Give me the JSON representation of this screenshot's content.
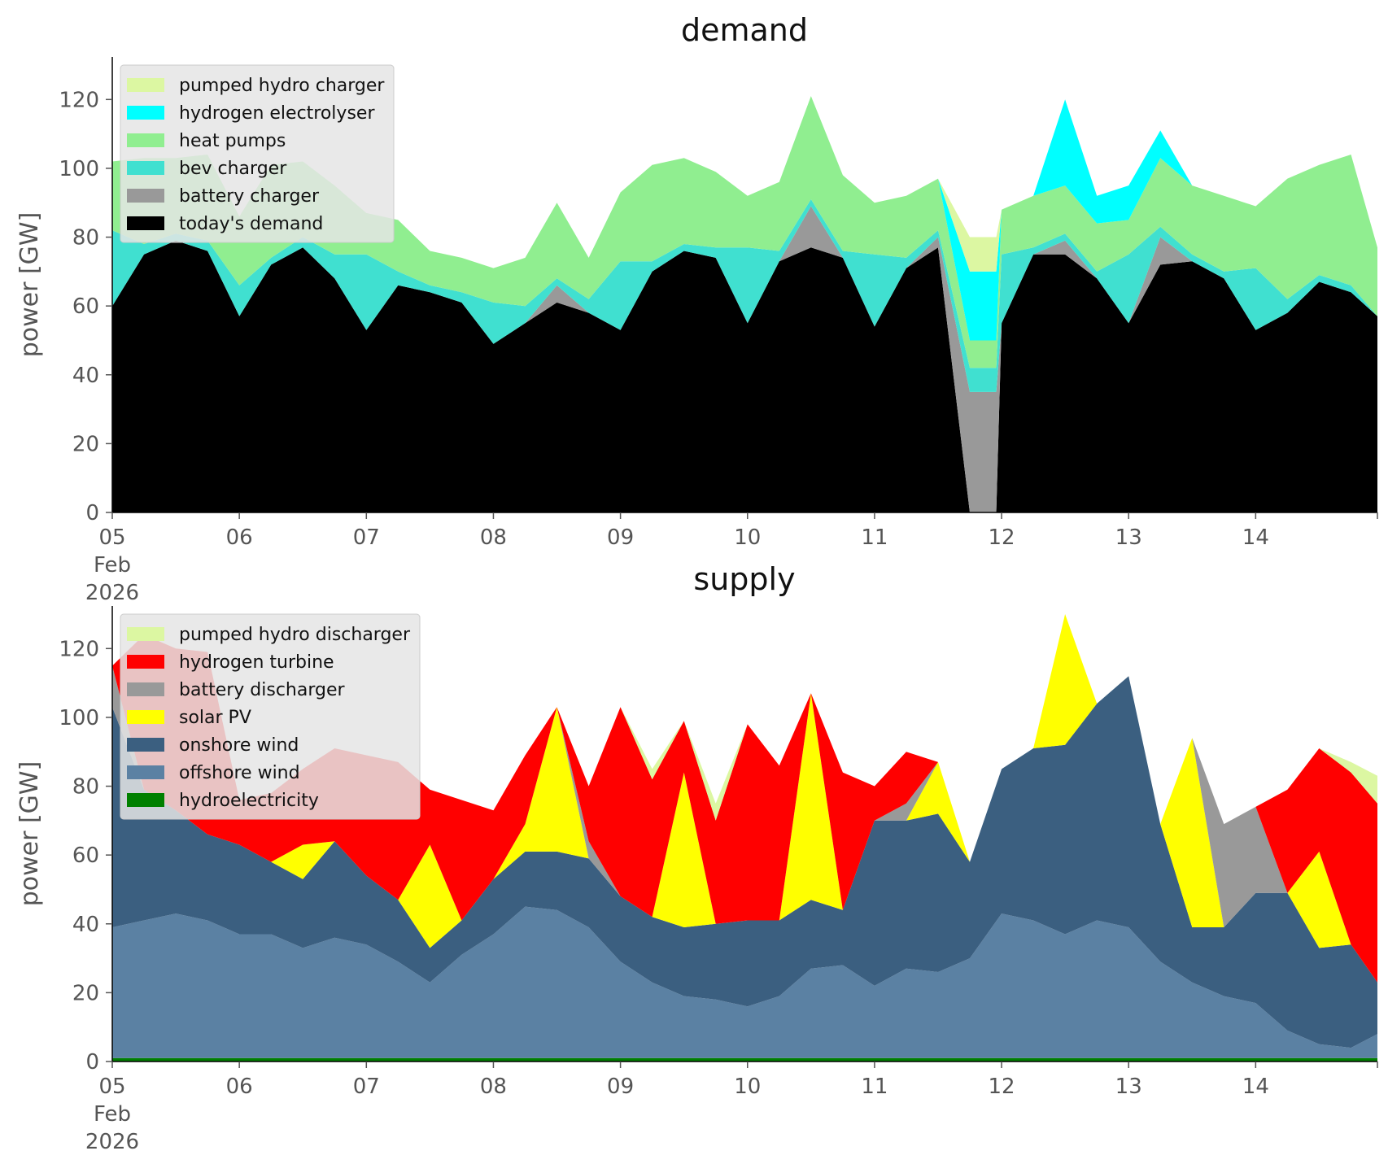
{
  "chart_data": [
    {
      "type": "area",
      "stacked": true,
      "title": "demand",
      "ylabel": "power [GW]",
      "xlabel": "",
      "ylim": [
        0,
        130
      ],
      "xlim": [
        "2026-02-05 00:00",
        "2026-02-14 23:00"
      ],
      "yticks": [
        0,
        20,
        40,
        60,
        80,
        100,
        120
      ],
      "xticks": [
        "05",
        "06",
        "07",
        "08",
        "09",
        "10",
        "11",
        "12",
        "13",
        "14"
      ],
      "xtick_month": "Feb",
      "xtick_year": "2026",
      "grid": false,
      "legend_position": "top-left",
      "legend": [
        "pumped hydro charger",
        "hydrogen electrolyser",
        "heat pumps",
        "bev charger",
        "battery charger",
        "today's demand"
      ],
      "x": [
        "2026-02-05 00:00",
        "2026-02-05 06:00",
        "2026-02-05 12:00",
        "2026-02-05 18:00",
        "2026-02-06 00:00",
        "2026-02-06 06:00",
        "2026-02-06 12:00",
        "2026-02-06 18:00",
        "2026-02-07 00:00",
        "2026-02-07 06:00",
        "2026-02-07 12:00",
        "2026-02-07 18:00",
        "2026-02-08 00:00",
        "2026-02-08 06:00",
        "2026-02-08 12:00",
        "2026-02-08 18:00",
        "2026-02-09 00:00",
        "2026-02-09 06:00",
        "2026-02-09 12:00",
        "2026-02-09 18:00",
        "2026-02-10 00:00",
        "2026-02-10 06:00",
        "2026-02-10 12:00",
        "2026-02-10 18:00",
        "2026-02-11 00:00",
        "2026-02-11 06:00",
        "2026-02-11 12:00",
        "2026-02-11 18:00",
        "2026-02-12 00:00",
        "2026-02-12 06:00",
        "2026-02-12 12:00",
        "2026-02-12 18:00",
        "2026-02-13 00:00",
        "2026-02-13 06:00",
        "2026-02-13 12:00",
        "2026-02-13 18:00",
        "2026-02-14 00:00",
        "2026-02-14 06:00",
        "2026-02-14 12:00",
        "2026-02-14 18:00",
        "2026-02-14 23:00"
      ],
      "series": [
        {
          "name": "today's demand",
          "color": "#000000",
          "values": [
            60,
            75,
            79,
            76,
            57,
            72,
            77,
            68,
            53,
            66,
            64,
            61,
            49,
            55,
            61,
            58,
            53,
            70,
            76,
            74,
            55,
            73,
            77,
            74,
            54,
            71,
            77,
            75,
            55,
            75,
            75,
            68,
            55,
            72,
            73,
            68,
            53,
            58,
            67,
            64,
            57
          ]
        },
        {
          "name": "battery charger",
          "color": "#999999",
          "values": [
            0,
            0,
            0,
            0,
            0,
            0,
            0,
            0,
            0,
            0,
            0,
            0,
            0,
            0,
            5,
            0,
            0,
            0,
            0,
            0,
            0,
            0,
            12,
            0,
            0,
            0,
            3,
            0,
            0,
            0,
            4,
            0,
            0,
            8,
            0,
            0,
            0,
            0,
            0,
            0,
            0
          ]
        },
        {
          "name": "bev charger",
          "color": "#40e0d0",
          "values": [
            22,
            3,
            2,
            3,
            9,
            2,
            3,
            7,
            22,
            4,
            2,
            3,
            12,
            5,
            2,
            4,
            20,
            3,
            2,
            3,
            22,
            3,
            2,
            2,
            21,
            3,
            2,
            2,
            20,
            2,
            2,
            2,
            20,
            3,
            2,
            2,
            18,
            4,
            2,
            2,
            0
          ]
        },
        {
          "name": "heat pumps",
          "color": "#90ee90",
          "values": [
            20,
            25,
            22,
            25,
            20,
            27,
            22,
            20,
            12,
            15,
            10,
            10,
            10,
            14,
            22,
            12,
            20,
            28,
            25,
            22,
            15,
            20,
            30,
            22,
            15,
            18,
            15,
            8,
            13,
            15,
            14,
            14,
            10,
            20,
            20,
            22,
            18,
            35,
            32,
            38,
            20
          ]
        },
        {
          "name": "hydrogen electrolyser",
          "color": "#00ffff",
          "values": [
            0,
            0,
            0,
            0,
            0,
            0,
            0,
            0,
            0,
            0,
            0,
            0,
            0,
            0,
            0,
            0,
            0,
            0,
            0,
            0,
            0,
            0,
            0,
            0,
            0,
            0,
            0,
            0,
            0,
            0,
            25,
            8,
            10,
            8,
            0,
            0,
            0,
            0,
            0,
            0,
            0
          ]
        },
        {
          "name": "pumped hydro charger",
          "color": "#dcf7a2",
          "values": [
            0,
            0,
            0,
            0,
            0,
            0,
            0,
            0,
            0,
            0,
            0,
            0,
            0,
            0,
            0,
            0,
            0,
            0,
            0,
            0,
            0,
            0,
            0,
            0,
            0,
            0,
            0,
            10,
            0,
            0,
            0,
            0,
            0,
            0,
            0,
            0,
            0,
            0,
            0,
            0,
            0
          ]
        }
      ],
      "outage": {
        "from": "2026-02-11 18:00",
        "to": "2026-02-11 23:00",
        "battery_charger": 35,
        "bev_charger": 7,
        "heat_pumps": 8,
        "hydrogen_electrolyser": 20,
        "pumped_hydro_charger": 10
      }
    },
    {
      "type": "area",
      "stacked": true,
      "title": "supply",
      "ylabel": "power [GW]",
      "xlabel": "",
      "ylim": [
        0,
        130
      ],
      "xlim": [
        "2026-02-05 00:00",
        "2026-02-14 23:00"
      ],
      "yticks": [
        0,
        20,
        40,
        60,
        80,
        100,
        120
      ],
      "xticks": [
        "05",
        "06",
        "07",
        "08",
        "09",
        "10",
        "11",
        "12",
        "13",
        "14"
      ],
      "xtick_month": "Feb",
      "xtick_year": "2026",
      "grid": false,
      "legend_position": "top-left",
      "legend": [
        "pumped hydro discharger",
        "hydrogen turbine",
        "battery discharger",
        "solar PV",
        "onshore wind",
        "offshore wind",
        "hydroelectricity"
      ],
      "x": [
        "2026-02-05 00:00",
        "2026-02-05 06:00",
        "2026-02-05 12:00",
        "2026-02-05 18:00",
        "2026-02-06 00:00",
        "2026-02-06 06:00",
        "2026-02-06 12:00",
        "2026-02-06 18:00",
        "2026-02-07 00:00",
        "2026-02-07 06:00",
        "2026-02-07 12:00",
        "2026-02-07 18:00",
        "2026-02-08 00:00",
        "2026-02-08 06:00",
        "2026-02-08 12:00",
        "2026-02-08 18:00",
        "2026-02-09 00:00",
        "2026-02-09 06:00",
        "2026-02-09 12:00",
        "2026-02-09 18:00",
        "2026-02-10 00:00",
        "2026-02-10 06:00",
        "2026-02-10 12:00",
        "2026-02-10 18:00",
        "2026-02-11 00:00",
        "2026-02-11 06:00",
        "2026-02-11 12:00",
        "2026-02-11 18:00",
        "2026-02-12 00:00",
        "2026-02-12 06:00",
        "2026-02-12 12:00",
        "2026-02-12 18:00",
        "2026-02-13 00:00",
        "2026-02-13 06:00",
        "2026-02-13 12:00",
        "2026-02-13 18:00",
        "2026-02-14 00:00",
        "2026-02-14 06:00",
        "2026-02-14 12:00",
        "2026-02-14 18:00",
        "2026-02-14 23:00"
      ],
      "series": [
        {
          "name": "hydroelectricity",
          "color": "#008000",
          "values": [
            1,
            1,
            1,
            1,
            1,
            1,
            1,
            1,
            1,
            1,
            1,
            1,
            1,
            1,
            1,
            1,
            1,
            1,
            1,
            1,
            1,
            1,
            1,
            1,
            1,
            1,
            1,
            1,
            1,
            1,
            1,
            1,
            1,
            1,
            1,
            1,
            1,
            1,
            1,
            1,
            1
          ]
        },
        {
          "name": "offshore wind",
          "color": "#5b81a3",
          "values": [
            38,
            40,
            42,
            40,
            36,
            36,
            32,
            35,
            33,
            28,
            22,
            30,
            36,
            44,
            43,
            38,
            28,
            22,
            18,
            17,
            15,
            18,
            26,
            27,
            21,
            26,
            25,
            29,
            42,
            40,
            36,
            40,
            38,
            28,
            22,
            18,
            16,
            8,
            4,
            3,
            7
          ]
        },
        {
          "name": "onshore wind",
          "color": "#3b5f80",
          "values": [
            64,
            38,
            30,
            25,
            26,
            21,
            20,
            28,
            20,
            18,
            10,
            10,
            16,
            16,
            17,
            20,
            19,
            19,
            20,
            22,
            25,
            22,
            20,
            16,
            48,
            43,
            46,
            28,
            42,
            50,
            55,
            63,
            73,
            40,
            16,
            20,
            32,
            40,
            28,
            30,
            15
          ]
        },
        {
          "name": "solar PV",
          "color": "#ffff00",
          "values": [
            0,
            0,
            0,
            0,
            0,
            0,
            10,
            0,
            0,
            0,
            30,
            0,
            0,
            8,
            42,
            0,
            0,
            0,
            45,
            0,
            0,
            0,
            60,
            0,
            0,
            0,
            15,
            0,
            0,
            0,
            38,
            0,
            0,
            0,
            55,
            0,
            0,
            0,
            28,
            0,
            0
          ]
        },
        {
          "name": "battery discharger",
          "color": "#999999",
          "values": [
            12,
            0,
            0,
            0,
            0,
            0,
            0,
            0,
            0,
            0,
            0,
            0,
            0,
            0,
            0,
            5,
            0,
            0,
            0,
            0,
            0,
            0,
            0,
            0,
            0,
            5,
            0,
            0,
            0,
            0,
            0,
            0,
            0,
            0,
            0,
            30,
            25,
            0,
            0,
            0,
            0
          ]
        },
        {
          "name": "hydrogen turbine",
          "color": "#ff0000",
          "values": [
            0,
            45,
            47,
            53,
            13,
            20,
            22,
            27,
            35,
            40,
            16,
            35,
            20,
            20,
            0,
            16,
            55,
            40,
            15,
            30,
            57,
            45,
            0,
            40,
            10,
            15,
            0,
            0,
            0,
            0,
            0,
            0,
            0,
            0,
            0,
            0,
            0,
            30,
            30,
            50,
            52
          ]
        },
        {
          "name": "pumped hydro discharger",
          "color": "#dcf7a2",
          "values": [
            0,
            0,
            0,
            0,
            0,
            0,
            0,
            0,
            0,
            0,
            0,
            0,
            0,
            0,
            0,
            0,
            0,
            3,
            0,
            5,
            0,
            0,
            0,
            0,
            0,
            0,
            0,
            0,
            0,
            0,
            0,
            0,
            0,
            0,
            0,
            0,
            0,
            0,
            0,
            3,
            8
          ]
        }
      ]
    }
  ]
}
